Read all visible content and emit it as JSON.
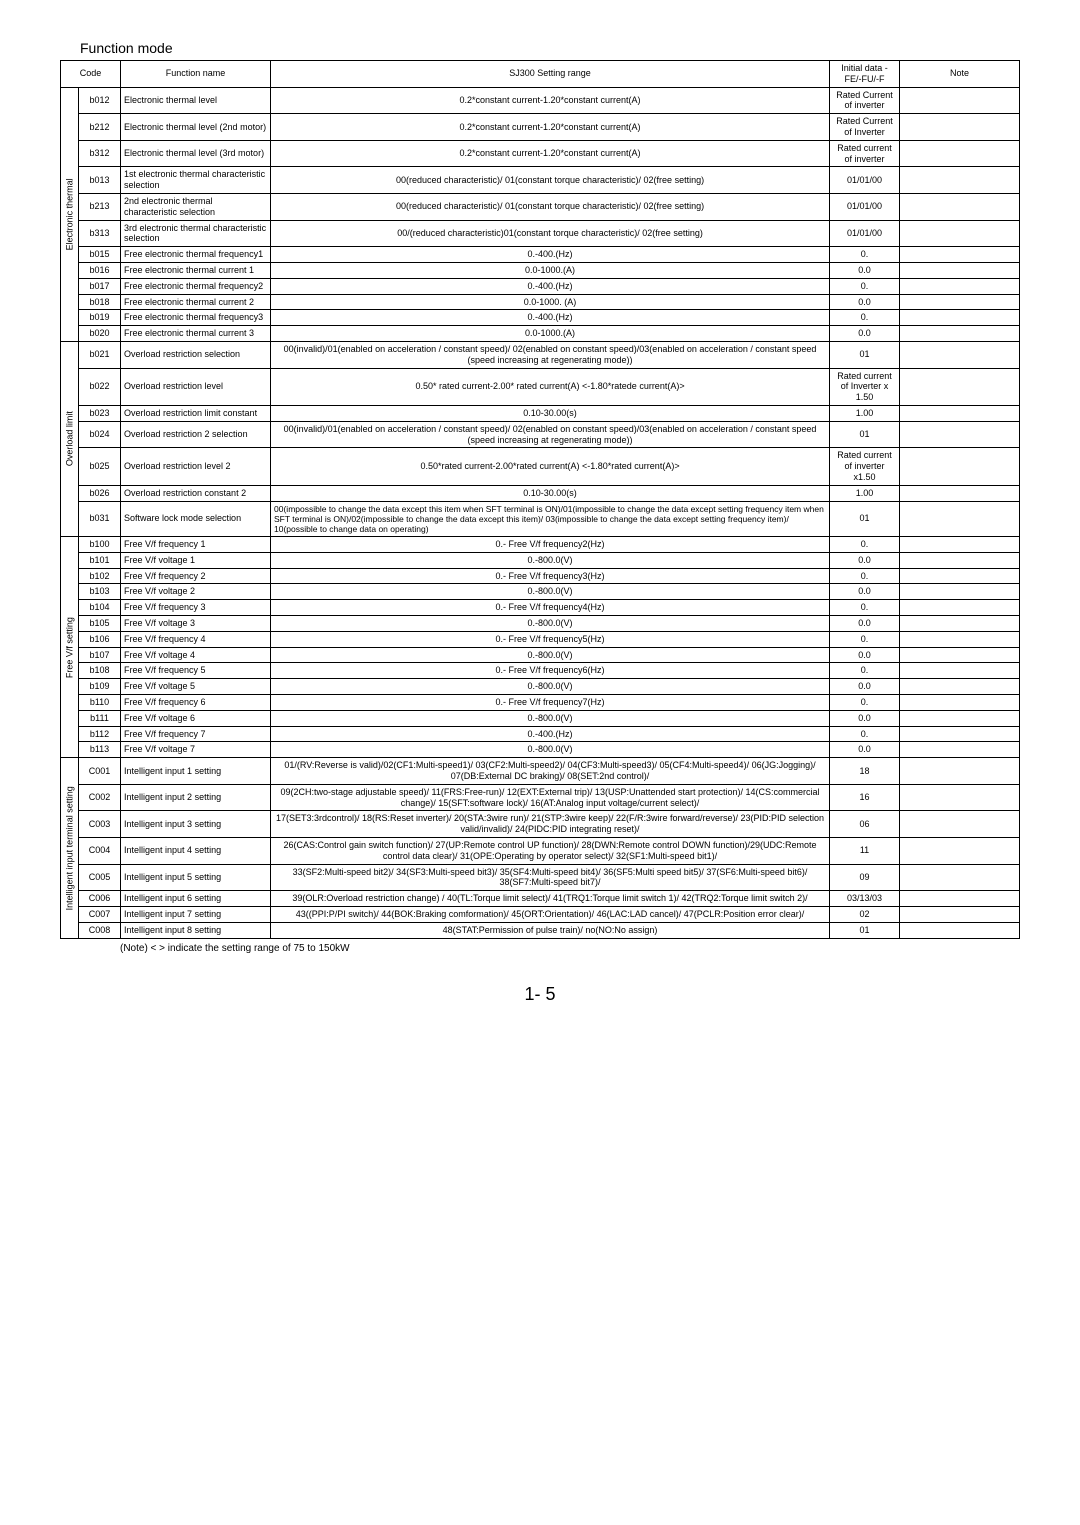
{
  "title": "Function mode",
  "header": {
    "code": "Code",
    "name": "Function name",
    "range": "SJ300 Setting range",
    "init": "Initial data\n-FE/-FU/-F",
    "note": "Note"
  },
  "footer_note": "(Note) <  > indicate the setting range of 75 to 150kW",
  "page_num": "1- 5",
  "groups": [
    {
      "label": "Electronic thermal",
      "rows": [
        {
          "code": "b012",
          "name": "Electronic thermal level",
          "range": "0.2*constant current-1.20*constant current(A)",
          "init": "Rated Current of inverter"
        },
        {
          "code": "b212",
          "name": "Electronic thermal level (2nd motor)",
          "range": "0.2*constant current-1.20*constant current(A)",
          "init": "Rated Current of Inverter"
        },
        {
          "code": "b312",
          "name": "Electronic thermal level (3rd motor)",
          "range": "0.2*constant current-1.20*constant current(A)",
          "init": "Rated current of inverter"
        },
        {
          "code": "b013",
          "name": "1st electronic thermal characteristic selection",
          "range": "00(reduced characteristic)/ 01(constant torque characteristic)/ 02(free setting)",
          "init": "01/01/00"
        },
        {
          "code": "b213",
          "name": "2nd electronic thermal characteristic selection",
          "range": "00(reduced characteristic)/ 01(constant torque characteristic)/ 02(free setting)",
          "init": "01/01/00"
        },
        {
          "code": "b313",
          "name": "3rd electronic thermal characteristic selection",
          "range": "00/(reduced characteristic)01(constant torque characteristic)/ 02(free setting)",
          "init": "01/01/00"
        },
        {
          "code": "b015",
          "name": "Free electronic thermal frequency1",
          "range": "0.-400.(Hz)",
          "init": "0."
        },
        {
          "code": "b016",
          "name": "Free electronic thermal current 1",
          "range": "0.0-1000.(A)",
          "init": "0.0"
        },
        {
          "code": "b017",
          "name": "Free electronic thermal frequency2",
          "range": "0.-400.(Hz)",
          "init": "0."
        },
        {
          "code": "b018",
          "name": "Free electronic thermal current 2",
          "range": "0.0-1000. (A)",
          "init": "0.0"
        },
        {
          "code": "b019",
          "name": "Free electronic thermal frequency3",
          "range": "0.-400.(Hz)",
          "init": "0."
        },
        {
          "code": "b020",
          "name": "Free electronic thermal current 3",
          "range": "0.0-1000.(A)",
          "init": "0.0"
        }
      ]
    },
    {
      "label": "Overload limit",
      "rows": [
        {
          "code": "b021",
          "name": "Overload restriction selection",
          "range": "00(invalid)/01(enabled on acceleration / constant speed)/ 02(enabled on constant speed)/03(enabled on acceleration / constant speed (speed increasing at regenerating mode))",
          "init": "01"
        },
        {
          "code": "b022",
          "name": "Overload restriction level",
          "range": "0.50* rated current-2.00* rated current(A)  <-1.80*ratede current(A)>",
          "init": "Rated current of Inverter x 1.50"
        },
        {
          "code": "b023",
          "name": "Overload restriction limit constant",
          "range": "0.10-30.00(s)",
          "init": "1.00"
        },
        {
          "code": "b024",
          "name": "Overload restriction 2 selection",
          "range": "00(invalid)/01(enabled on acceleration / constant speed)/ 02(enabled on constant speed)/03(enabled on acceleration / constant speed (speed increasing at regenerating mode))",
          "init": "01"
        },
        {
          "code": "b025",
          "name": "Overload restriction level 2",
          "range": "0.50*rated current-2.00*rated current(A)  <-1.80*rated current(A)>",
          "init": "Rated current of inverter x1.50"
        },
        {
          "code": "b026",
          "name": "Overload restriction constant 2",
          "range": "0.10-30.00(s)",
          "init": "1.00"
        },
        {
          "code": "b031",
          "name": "Software lock mode selection",
          "range": "00(impossible to change the data except this item when SFT terminal is ON)/01(impossible to change the data except setting frequency item when SFT terminal is ON)/02(impossible to change the data except this item)/ 03(impossible to change the data except setting frequency item)/ 10(possible to change data on operating)",
          "init": "01"
        }
      ]
    },
    {
      "label": "Free V/f setting",
      "rows": [
        {
          "code": "b100",
          "name": "Free V/f frequency 1",
          "range": "0.- Free V/f frequency2(Hz)",
          "init": "0."
        },
        {
          "code": "b101",
          "name": "Free V/f voltage 1",
          "range": "0.-800.0(V)",
          "init": "0.0"
        },
        {
          "code": "b102",
          "name": "Free V/f frequency 2",
          "range": "0.- Free V/f frequency3(Hz)",
          "init": "0."
        },
        {
          "code": "b103",
          "name": "Free V/f voltage 2",
          "range": "0.-800.0(V)",
          "init": "0.0"
        },
        {
          "code": "b104",
          "name": "Free V/f frequency 3",
          "range": "0.- Free V/f frequency4(Hz)",
          "init": "0."
        },
        {
          "code": "b105",
          "name": "Free V/f voltage 3",
          "range": "0.-800.0(V)",
          "init": "0.0"
        },
        {
          "code": "b106",
          "name": "Free V/f frequency 4",
          "range": "0.- Free V/f frequency5(Hz)",
          "init": "0."
        },
        {
          "code": "b107",
          "name": "Free V/f voltage 4",
          "range": "0.-800.0(V)",
          "init": "0.0"
        },
        {
          "code": "b108",
          "name": "Free V/f frequency 5",
          "range": "0.- Free V/f frequency6(Hz)",
          "init": "0."
        },
        {
          "code": "b109",
          "name": "Free V/f voltage 5",
          "range": "0.-800.0(V)",
          "init": "0.0"
        },
        {
          "code": "b110",
          "name": "Free V/f frequency 6",
          "range": "0.- Free V/f frequency7(Hz)",
          "init": "0."
        },
        {
          "code": "b111",
          "name": "Free V/f voltage 6",
          "range": "0.-800.0(V)",
          "init": "0.0"
        },
        {
          "code": "b112",
          "name": "Free V/f frequency 7",
          "range": "0.-400.(Hz)",
          "init": "0."
        },
        {
          "code": "b113",
          "name": "Free V/f voltage 7",
          "range": "0.-800.0(V)",
          "init": "0.0"
        }
      ]
    },
    {
      "label": "Intelligent input terminal setting",
      "rows": [
        {
          "code": "C001",
          "name": "Intelligent input 1 setting",
          "range": "01/(RV:Reverse is valid)/02(CF1:Multi-speed1)/ 03(CF2:Multi-speed2)/ 04(CF3:Multi-speed3)/ 05(CF4:Multi-speed4)/ 06(JG:Jogging)/ 07(DB:External DC braking)/ 08(SET:2nd control)/",
          "init": "18"
        },
        {
          "code": "C002",
          "name": "Intelligent input 2 setting",
          "range": "09(2CH:two-stage adjustable speed)/ 11(FRS:Free-run)/ 12(EXT:External trip)/ 13(USP:Unattended start protection)/ 14(CS:commercial change)/ 15(SFT:software lock)/ 16(AT:Analog input voltage/current select)/",
          "init": "16"
        },
        {
          "code": "C003",
          "name": "Intelligent input 3 setting",
          "range": "17(SET3:3rdcontrol)/ 18(RS:Reset inverter)/ 20(STA:3wire run)/ 21(STP:3wire keep)/ 22(F/R:3wire forward/reverse)/ 23(PID:PID selection valid/invalid)/ 24(PIDC:PID integrating reset)/",
          "init": "06"
        },
        {
          "code": "C004",
          "name": "Intelligent input 4 setting",
          "range": "26(CAS:Control gain switch function)/ 27(UP:Remote control UP function)/ 28(DWN:Remote control DOWN function)/29(UDC:Remote control data clear)/ 31(OPE:Operating by operator select)/ 32(SF1:Multi-speed bit1)/",
          "init": "11"
        },
        {
          "code": "C005",
          "name": "Intelligent input 5 setting",
          "range": "33(SF2:Multi-speed bit2)/ 34(SF3:Multi-speed bit3)/ 35(SF4:Multi-speed bit4)/ 36(SF5:Multi speed bit5)/ 37(SF6:Multi-speed bit6)/ 38(SF7:Multi-speed bit7)/",
          "init": "09"
        },
        {
          "code": "C006",
          "name": "Intelligent input 6 setting",
          "range": "39(OLR:Overload restriction change) / 40(TL:Torque limit select)/ 41(TRQ1:Torque limit switch 1)/ 42(TRQ2:Torque limit switch 2)/",
          "init": "03/13/03"
        },
        {
          "code": "C007",
          "name": "Intelligent input 7 setting",
          "range": "43((PPI:P/PI switch)/ 44(BOK:Braking comformation)/ 45(ORT:Orientation)/ 46(LAC:LAD cancel)/ 47(PCLR:Position error clear)/",
          "init": "02"
        },
        {
          "code": "C008",
          "name": "Intelligent input 8 setting",
          "range": "48(STAT:Permission of pulse train)/ no(NO:No assign)",
          "init": "01"
        }
      ]
    }
  ]
}
